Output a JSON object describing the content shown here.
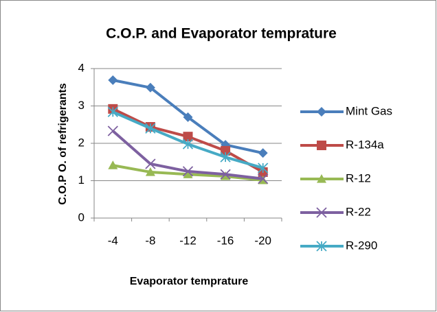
{
  "chart_data": {
    "type": "line",
    "title": "C.O.P. and Evaporator temprature",
    "xlabel": "Evaporator temprature",
    "ylabel": "C.O.P O. of refrigerants",
    "categories": [
      "-4",
      "-8",
      "-12",
      "-16",
      "-20"
    ],
    "series": [
      {
        "name": "Mint Gas",
        "color": "#4a7ebb",
        "marker": "diamond",
        "values": [
          3.69,
          3.49,
          2.7,
          1.96,
          1.74
        ]
      },
      {
        "name": "R-134a",
        "color": "#be4b48",
        "marker": "square",
        "values": [
          2.92,
          2.44,
          2.18,
          1.8,
          1.23
        ]
      },
      {
        "name": "R-12",
        "color": "#98b954",
        "marker": "triangle",
        "values": [
          1.41,
          1.23,
          1.17,
          1.12,
          1.01
        ]
      },
      {
        "name": "R-22",
        "color": "#7d60a0",
        "marker": "x",
        "values": [
          2.33,
          1.45,
          1.25,
          1.17,
          1.05
        ]
      },
      {
        "name": "R-290",
        "color": "#46aac5",
        "marker": "star",
        "values": [
          2.84,
          2.4,
          1.98,
          1.63,
          1.34
        ]
      }
    ],
    "ylim": [
      0,
      4
    ],
    "yticks": [
      0,
      1,
      2,
      3,
      4
    ],
    "grid": true,
    "legend": "right"
  }
}
